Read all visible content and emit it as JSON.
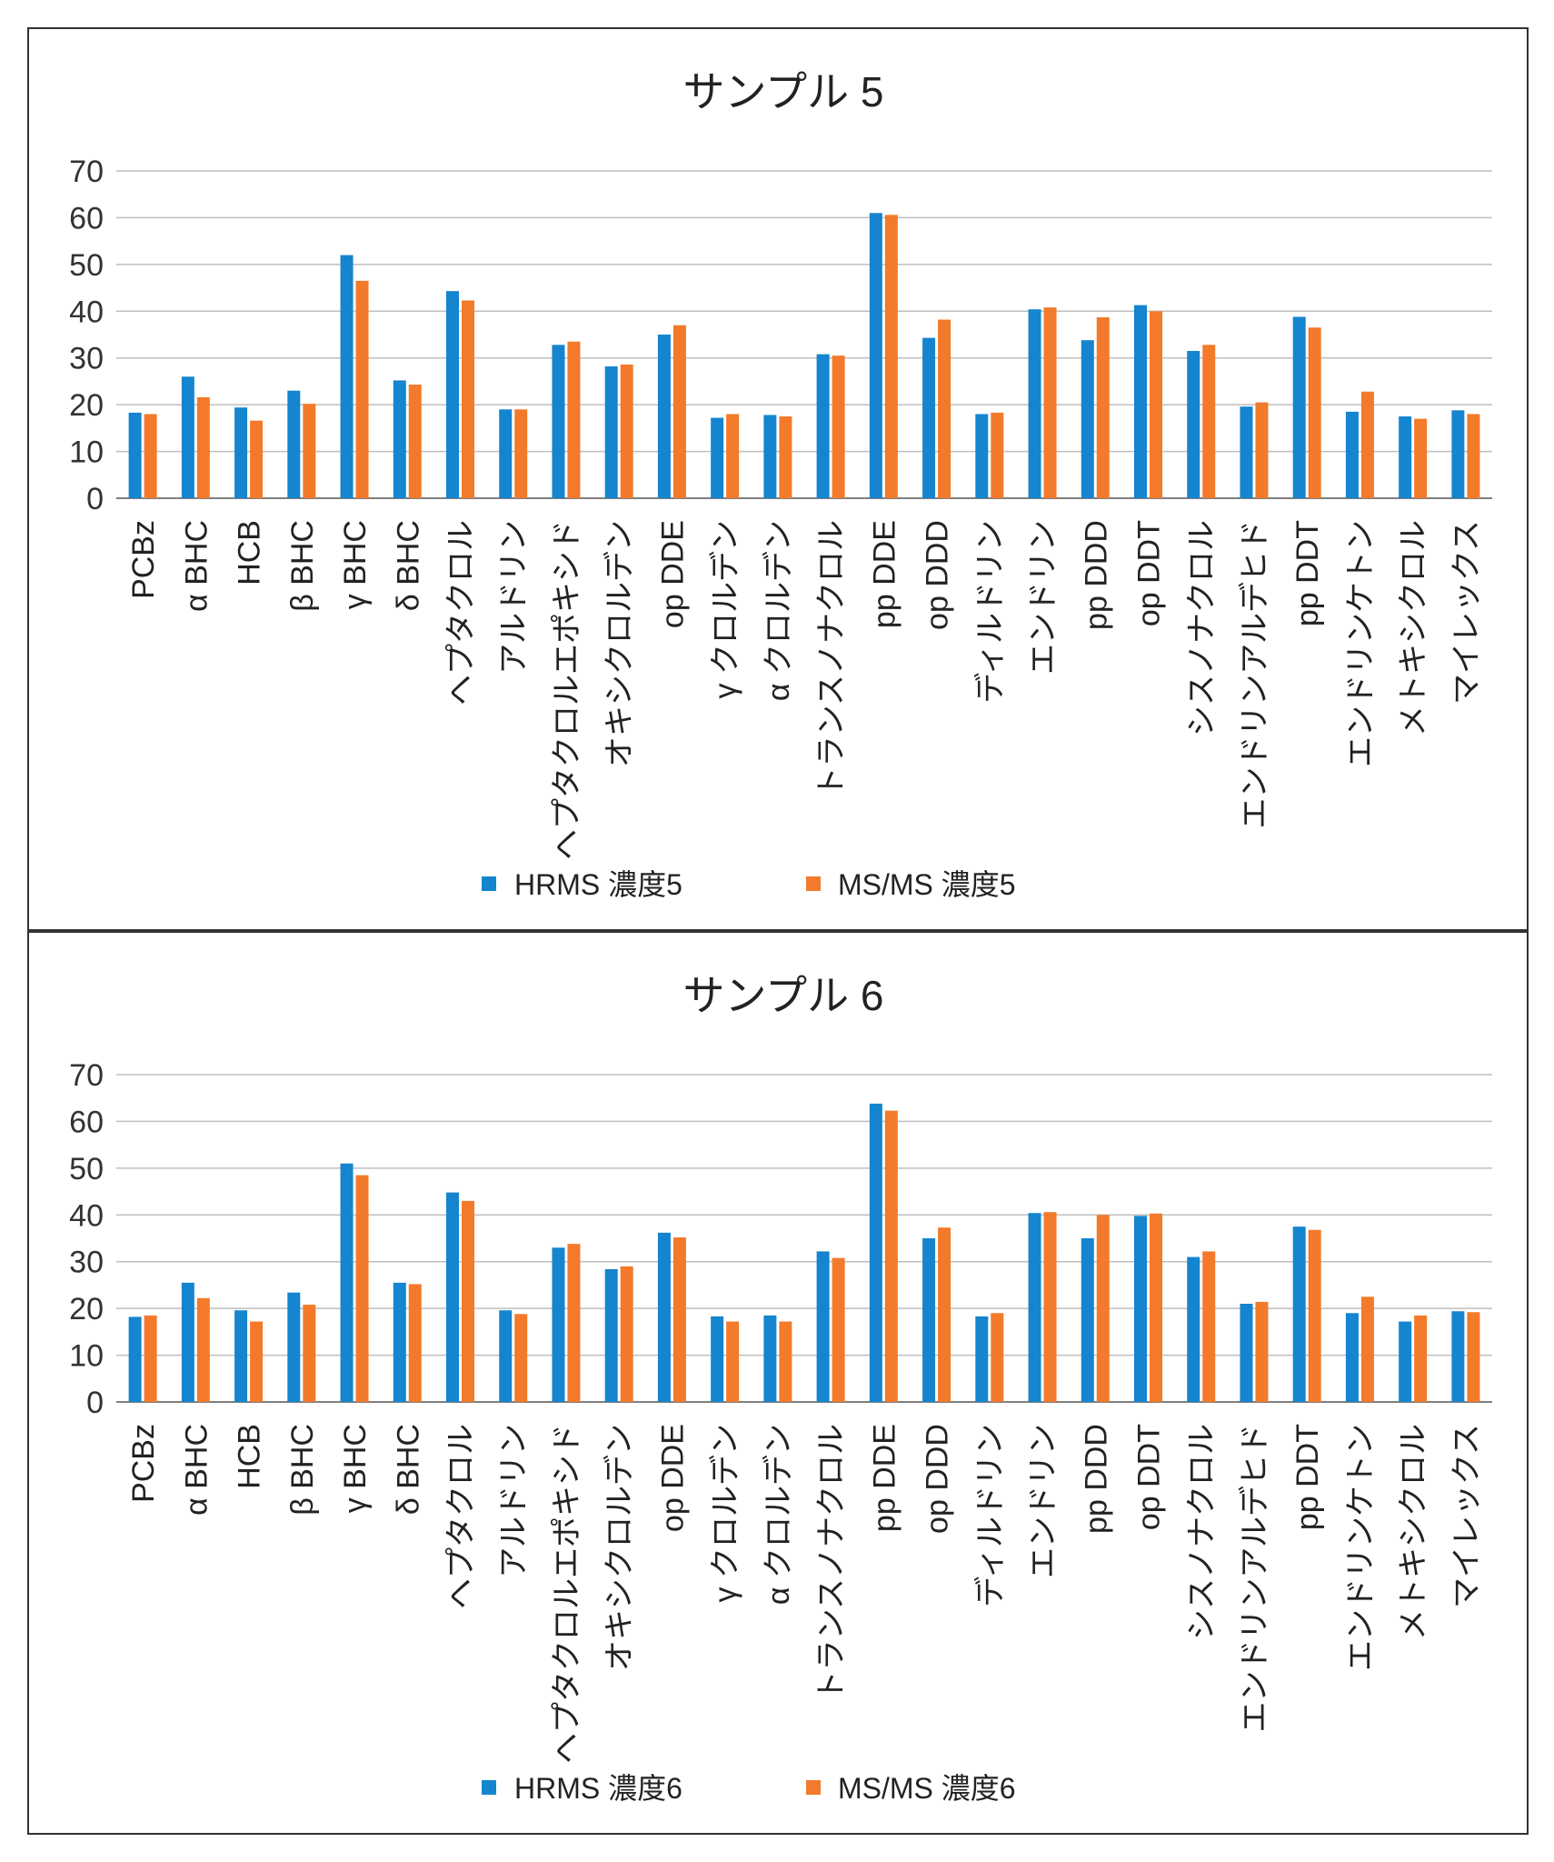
{
  "colors": {
    "hrms": "#1485CE",
    "msms": "#F37A2B",
    "grid": "#BFBFBF",
    "axis": "#7F7F7F"
  },
  "chart_data": [
    {
      "type": "bar",
      "title": "サンプル 5",
      "ylim": [
        0,
        70
      ],
      "yticks": [
        0,
        10,
        20,
        30,
        40,
        50,
        60,
        70
      ],
      "grid": true,
      "legend": "bottom",
      "categories": [
        "PCBz",
        "α BHC",
        "HCB",
        "β BHC",
        "γ BHC",
        "δ BHC",
        "ヘプタクロル",
        "アルドリン",
        "ヘプタクロルエポキシド",
        "オキシクロルデン",
        "op DDE",
        "γ クロルデン",
        "α クロルデン",
        "トランスノナクロル",
        "pp DDE",
        "op DDD",
        "ディルドリン",
        "エンドリン",
        "pp DDD",
        "op DDT",
        "シスノナクロル",
        "エンドリンアルデヒド",
        "pp DDT",
        "エンドリンケトン",
        "メトキシクロル",
        "マイレックス"
      ],
      "series": [
        {
          "name": "HRMS 濃度5",
          "values": [
            18.3,
            26.0,
            19.4,
            23.0,
            52.0,
            25.2,
            44.3,
            19.0,
            32.8,
            28.2,
            35.0,
            17.2,
            17.8,
            30.8,
            61.0,
            34.3,
            18.0,
            40.4,
            33.8,
            41.3,
            31.5,
            19.6,
            38.8,
            18.5,
            17.5,
            18.8
          ]
        },
        {
          "name": "MS/MS 濃度5",
          "values": [
            18.0,
            21.6,
            16.6,
            20.2,
            46.5,
            24.3,
            42.3,
            19.0,
            33.5,
            28.6,
            37.0,
            18.0,
            17.5,
            30.5,
            60.6,
            38.2,
            18.3,
            40.8,
            38.7,
            40.0,
            32.8,
            20.5,
            36.5,
            22.8,
            17.0,
            18.0
          ]
        }
      ]
    },
    {
      "type": "bar",
      "title": "サンプル 6",
      "ylim": [
        0,
        70
      ],
      "yticks": [
        0,
        10,
        20,
        30,
        40,
        50,
        60,
        70
      ],
      "grid": true,
      "legend": "bottom",
      "categories": [
        "PCBz",
        "α BHC",
        "HCB",
        "β BHC",
        "γ BHC",
        "δ BHC",
        "ヘプタクロル",
        "アルドリン",
        "ヘプタクロルエポキシド",
        "オキシクロルデン",
        "op DDE",
        "γ クロルデン",
        "α クロルデン",
        "トランスノナクロル",
        "pp DDE",
        "op DDD",
        "ディルドリン",
        "エンドリン",
        "pp DDD",
        "op DDT",
        "シスノナクロル",
        "エンドリンアルデヒド",
        "pp DDT",
        "エンドリンケトン",
        "メトキシクロル",
        "マイレックス"
      ],
      "series": [
        {
          "name": "HRMS 濃度6",
          "values": [
            18.2,
            25.5,
            19.6,
            23.4,
            51.0,
            25.5,
            44.8,
            19.6,
            33.0,
            28.4,
            36.2,
            18.3,
            18.5,
            32.2,
            63.8,
            35.0,
            18.3,
            40.4,
            35.0,
            39.8,
            31.0,
            21.0,
            37.5,
            19.0,
            17.2,
            19.4
          ]
        },
        {
          "name": "MS/MS 濃度6",
          "values": [
            18.5,
            22.2,
            17.2,
            20.8,
            48.5,
            25.2,
            43.0,
            18.8,
            33.8,
            29.0,
            35.2,
            17.2,
            17.2,
            30.8,
            62.3,
            37.3,
            19.0,
            40.6,
            40.0,
            40.3,
            32.2,
            21.4,
            36.8,
            22.5,
            18.5,
            19.2
          ]
        }
      ]
    }
  ]
}
